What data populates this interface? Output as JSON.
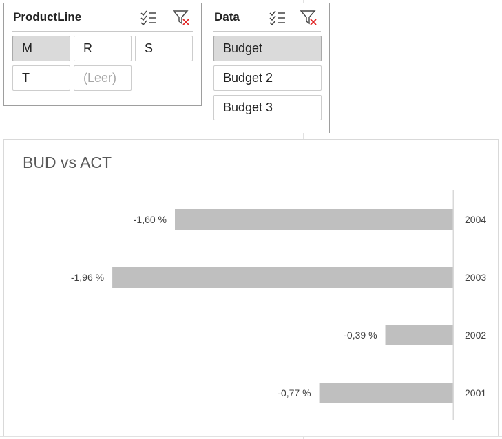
{
  "slicers": {
    "productline": {
      "title": "ProductLine",
      "multiselect_icon": "multi-select-icon",
      "clear_filter_icon": "clear-filter-icon",
      "items": [
        {
          "label": "M",
          "selected": true
        },
        {
          "label": "R",
          "selected": false
        },
        {
          "label": "S",
          "selected": false
        },
        {
          "label": "T",
          "selected": false
        },
        {
          "label": "(Leer)",
          "selected": false,
          "no_data": true
        }
      ]
    },
    "data": {
      "title": "Data",
      "multiselect_icon": "multi-select-icon",
      "clear_filter_icon": "clear-filter-icon",
      "items": [
        {
          "label": "Budget",
          "selected": true
        },
        {
          "label": "Budget 2",
          "selected": false
        },
        {
          "label": "Budget 3",
          "selected": false
        }
      ]
    }
  },
  "chart": {
    "title": "BUD vs ACT"
  },
  "chart_data": {
    "type": "bar",
    "orientation": "horizontal",
    "title": "BUD vs ACT",
    "categories": [
      "2004",
      "2003",
      "2002",
      "2001"
    ],
    "values": [
      -1.6,
      -1.96,
      -0.39,
      -0.77
    ],
    "data_labels": [
      "-1,60 %",
      "-1,96 %",
      "-0,39 %",
      "-0,77 %"
    ],
    "unit": "%",
    "xlim": [
      -2.0,
      0
    ],
    "category_labels_position": "right",
    "grid": false,
    "legend": "none",
    "bar_color": "#bfbfbf",
    "axis_color": "#d9d9d9"
  }
}
